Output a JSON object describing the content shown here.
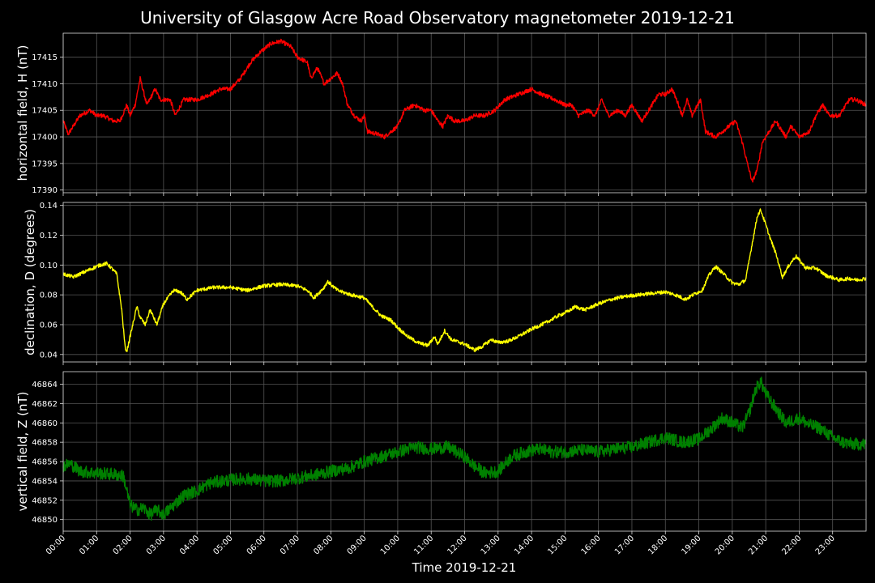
{
  "chart_data": {
    "title": "University of Glasgow Acre Road Observatory magnetometer 2019-12-21",
    "xlabel": "Time 2019-12-21",
    "x_ticks": [
      "00:00",
      "01:00",
      "02:00",
      "03:00",
      "04:00",
      "05:00",
      "06:00",
      "07:00",
      "08:00",
      "09:00",
      "10:00",
      "11:00",
      "12:00",
      "13:00",
      "14:00",
      "15:00",
      "16:00",
      "17:00",
      "18:00",
      "19:00",
      "20:00",
      "21:00",
      "22:00",
      "23:00"
    ],
    "xlim_hours": [
      0,
      24
    ],
    "grid": true,
    "panels": [
      {
        "type": "line",
        "ylabel": "horizontal field, H (nT)",
        "color": "#ff0000",
        "ylim": [
          17389.5,
          17419.5
        ],
        "yticks": [
          17390,
          17395,
          17400,
          17405,
          17410,
          17415
        ],
        "noise": 0.4,
        "points": [
          [
            0,
            17403
          ],
          [
            0.15,
            17400.5
          ],
          [
            0.5,
            17404
          ],
          [
            0.8,
            17405
          ],
          [
            1,
            17404
          ],
          [
            1.2,
            17404
          ],
          [
            1.5,
            17403
          ],
          [
            1.7,
            17403
          ],
          [
            1.9,
            17406
          ],
          [
            2.0,
            17404
          ],
          [
            2.15,
            17406
          ],
          [
            2.3,
            17411
          ],
          [
            2.5,
            17406
          ],
          [
            2.75,
            17409
          ],
          [
            2.9,
            17407
          ],
          [
            3.2,
            17407
          ],
          [
            3.35,
            17404
          ],
          [
            3.6,
            17407
          ],
          [
            4,
            17407
          ],
          [
            4.4,
            17408
          ],
          [
            4.7,
            17409
          ],
          [
            5,
            17409
          ],
          [
            5.3,
            17411
          ],
          [
            5.6,
            17414
          ],
          [
            5.9,
            17416
          ],
          [
            6.2,
            17417.5
          ],
          [
            6.5,
            17418
          ],
          [
            6.8,
            17417
          ],
          [
            7.0,
            17415
          ],
          [
            7.3,
            17414
          ],
          [
            7.4,
            17411
          ],
          [
            7.6,
            17413
          ],
          [
            7.8,
            17410
          ],
          [
            8.0,
            17411
          ],
          [
            8.2,
            17412
          ],
          [
            8.35,
            17410
          ],
          [
            8.5,
            17406
          ],
          [
            8.7,
            17404
          ],
          [
            8.9,
            17403
          ],
          [
            9.0,
            17404
          ],
          [
            9.1,
            17401
          ],
          [
            9.4,
            17400.5
          ],
          [
            9.6,
            17400
          ],
          [
            9.8,
            17401
          ],
          [
            10.0,
            17402
          ],
          [
            10.2,
            17405
          ],
          [
            10.5,
            17406
          ],
          [
            10.8,
            17405
          ],
          [
            11.0,
            17405
          ],
          [
            11.2,
            17403
          ],
          [
            11.35,
            17402
          ],
          [
            11.5,
            17404
          ],
          [
            11.7,
            17403
          ],
          [
            12.0,
            17403
          ],
          [
            12.3,
            17404
          ],
          [
            12.6,
            17404
          ],
          [
            12.9,
            17405
          ],
          [
            13.2,
            17407
          ],
          [
            13.6,
            17408
          ],
          [
            14.0,
            17409
          ],
          [
            14.3,
            17408
          ],
          [
            14.7,
            17407
          ],
          [
            15.0,
            17406
          ],
          [
            15.2,
            17406
          ],
          [
            15.4,
            17404
          ],
          [
            15.7,
            17405
          ],
          [
            15.9,
            17404
          ],
          [
            16.1,
            17407
          ],
          [
            16.3,
            17404
          ],
          [
            16.6,
            17405
          ],
          [
            16.8,
            17404
          ],
          [
            17.0,
            17406
          ],
          [
            17.3,
            17403
          ],
          [
            17.6,
            17406
          ],
          [
            17.8,
            17408
          ],
          [
            18.0,
            17408
          ],
          [
            18.2,
            17409
          ],
          [
            18.4,
            17406
          ],
          [
            18.5,
            17404
          ],
          [
            18.65,
            17407
          ],
          [
            18.8,
            17404
          ],
          [
            19.05,
            17407
          ],
          [
            19.2,
            17401
          ],
          [
            19.5,
            17400
          ],
          [
            19.7,
            17401
          ],
          [
            19.9,
            17402
          ],
          [
            20.1,
            17403
          ],
          [
            20.2,
            17401
          ],
          [
            20.3,
            17399
          ],
          [
            20.45,
            17395
          ],
          [
            20.6,
            17391.5
          ],
          [
            20.75,
            17394
          ],
          [
            20.9,
            17399
          ],
          [
            21.1,
            17401
          ],
          [
            21.3,
            17403
          ],
          [
            21.5,
            17401
          ],
          [
            21.6,
            17400
          ],
          [
            21.75,
            17402
          ],
          [
            22.0,
            17400
          ],
          [
            22.3,
            17401
          ],
          [
            22.5,
            17404
          ],
          [
            22.7,
            17406
          ],
          [
            22.9,
            17404
          ],
          [
            23.2,
            17404
          ],
          [
            23.5,
            17407
          ],
          [
            23.7,
            17407
          ],
          [
            24,
            17406
          ]
        ]
      },
      {
        "type": "line",
        "ylabel": "declination, D (degrees)",
        "color": "#ffff00",
        "ylim": [
          0.035,
          0.142
        ],
        "yticks": [
          0.04,
          0.06,
          0.08,
          0.1,
          0.12,
          0.14
        ],
        "ytick_labels": [
          "0.04",
          "0.06",
          "0.08",
          "0.10",
          "0.12",
          "0.14"
        ],
        "noise": 0.0012,
        "points": [
          [
            0,
            0.094
          ],
          [
            0.3,
            0.092
          ],
          [
            0.6,
            0.095
          ],
          [
            0.9,
            0.098
          ],
          [
            1.1,
            0.1
          ],
          [
            1.3,
            0.101
          ],
          [
            1.4,
            0.099
          ],
          [
            1.6,
            0.094
          ],
          [
            1.75,
            0.07
          ],
          [
            1.85,
            0.045
          ],
          [
            1.9,
            0.042
          ],
          [
            2.0,
            0.052
          ],
          [
            2.2,
            0.072
          ],
          [
            2.3,
            0.065
          ],
          [
            2.45,
            0.06
          ],
          [
            2.6,
            0.07
          ],
          [
            2.8,
            0.06
          ],
          [
            3.0,
            0.074
          ],
          [
            3.3,
            0.083
          ],
          [
            3.5,
            0.082
          ],
          [
            3.7,
            0.077
          ],
          [
            4.0,
            0.083
          ],
          [
            4.5,
            0.085
          ],
          [
            5.0,
            0.085
          ],
          [
            5.5,
            0.083
          ],
          [
            6.0,
            0.086
          ],
          [
            6.5,
            0.087
          ],
          [
            7.0,
            0.086
          ],
          [
            7.3,
            0.083
          ],
          [
            7.5,
            0.078
          ],
          [
            7.8,
            0.085
          ],
          [
            7.9,
            0.089
          ],
          [
            8.2,
            0.083
          ],
          [
            8.6,
            0.08
          ],
          [
            9.0,
            0.078
          ],
          [
            9.2,
            0.073
          ],
          [
            9.5,
            0.066
          ],
          [
            9.8,
            0.063
          ],
          [
            10.0,
            0.058
          ],
          [
            10.3,
            0.052
          ],
          [
            10.6,
            0.048
          ],
          [
            10.9,
            0.046
          ],
          [
            11.1,
            0.052
          ],
          [
            11.2,
            0.047
          ],
          [
            11.4,
            0.056
          ],
          [
            11.6,
            0.05
          ],
          [
            12.0,
            0.047
          ],
          [
            12.3,
            0.043
          ],
          [
            12.5,
            0.045
          ],
          [
            12.8,
            0.05
          ],
          [
            13.0,
            0.048
          ],
          [
            13.3,
            0.049
          ],
          [
            13.6,
            0.052
          ],
          [
            14.0,
            0.057
          ],
          [
            14.4,
            0.061
          ],
          [
            14.8,
            0.066
          ],
          [
            15.1,
            0.069
          ],
          [
            15.3,
            0.072
          ],
          [
            15.6,
            0.07
          ],
          [
            16.0,
            0.074
          ],
          [
            16.4,
            0.077
          ],
          [
            16.8,
            0.079
          ],
          [
            17.2,
            0.08
          ],
          [
            17.6,
            0.081
          ],
          [
            18.0,
            0.082
          ],
          [
            18.3,
            0.08
          ],
          [
            18.6,
            0.077
          ],
          [
            18.9,
            0.081
          ],
          [
            19.1,
            0.083
          ],
          [
            19.3,
            0.093
          ],
          [
            19.5,
            0.099
          ],
          [
            19.7,
            0.095
          ],
          [
            20.0,
            0.088
          ],
          [
            20.2,
            0.087
          ],
          [
            20.4,
            0.09
          ],
          [
            20.6,
            0.115
          ],
          [
            20.75,
            0.133
          ],
          [
            20.85,
            0.137
          ],
          [
            21.0,
            0.127
          ],
          [
            21.15,
            0.117
          ],
          [
            21.3,
            0.108
          ],
          [
            21.5,
            0.092
          ],
          [
            21.7,
            0.1
          ],
          [
            21.9,
            0.106
          ],
          [
            22.2,
            0.098
          ],
          [
            22.5,
            0.098
          ],
          [
            22.8,
            0.093
          ],
          [
            23.2,
            0.09
          ],
          [
            23.5,
            0.091
          ],
          [
            23.7,
            0.09
          ],
          [
            24,
            0.091
          ]
        ]
      },
      {
        "type": "line",
        "ylabel": "vertical field, Z (nT)",
        "color": "#008000",
        "ylim": [
          46848.8,
          46865.3
        ],
        "yticks": [
          46850,
          46852,
          46854,
          46856,
          46858,
          46860,
          46862,
          46864
        ],
        "noise": 0.65,
        "points": [
          [
            0,
            46855.5
          ],
          [
            0.2,
            46855.8
          ],
          [
            0.5,
            46855.0
          ],
          [
            1.0,
            46854.8
          ],
          [
            1.5,
            46854.7
          ],
          [
            1.8,
            46854.5
          ],
          [
            2.0,
            46851.5
          ],
          [
            2.2,
            46851.0
          ],
          [
            2.4,
            46851.2
          ],
          [
            2.6,
            46850.5
          ],
          [
            2.8,
            46851.0
          ],
          [
            3.0,
            46850.5
          ],
          [
            3.3,
            46851.5
          ],
          [
            3.6,
            46852.5
          ],
          [
            4.0,
            46853.0
          ],
          [
            4.4,
            46853.8
          ],
          [
            4.8,
            46854.0
          ],
          [
            5.2,
            46854.2
          ],
          [
            5.6,
            46854.2
          ],
          [
            6.0,
            46854.0
          ],
          [
            6.5,
            46854.0
          ],
          [
            7.0,
            46854.3
          ],
          [
            7.5,
            46854.6
          ],
          [
            8.0,
            46855.0
          ],
          [
            8.5,
            46855.3
          ],
          [
            9.0,
            46856.0
          ],
          [
            9.5,
            46856.5
          ],
          [
            10.0,
            46857.0
          ],
          [
            10.5,
            46857.5
          ],
          [
            11.0,
            46857.3
          ],
          [
            11.5,
            46857.5
          ],
          [
            12.0,
            46856.5
          ],
          [
            12.3,
            46855.5
          ],
          [
            12.6,
            46854.8
          ],
          [
            13.0,
            46855.0
          ],
          [
            13.4,
            46856.5
          ],
          [
            13.8,
            46857.0
          ],
          [
            14.2,
            46857.3
          ],
          [
            14.6,
            46857.0
          ],
          [
            15.0,
            46857.0
          ],
          [
            15.5,
            46857.2
          ],
          [
            16.0,
            46857.0
          ],
          [
            16.5,
            46857.3
          ],
          [
            17.0,
            46857.5
          ],
          [
            17.5,
            46858.0
          ],
          [
            18.0,
            46858.5
          ],
          [
            18.5,
            46858.0
          ],
          [
            19.0,
            46858.3
          ],
          [
            19.4,
            46859.5
          ],
          [
            19.7,
            46860.5
          ],
          [
            20.0,
            46860.0
          ],
          [
            20.3,
            46859.5
          ],
          [
            20.5,
            46861.0
          ],
          [
            20.7,
            46863.5
          ],
          [
            20.85,
            46864.3
          ],
          [
            21.0,
            46863.0
          ],
          [
            21.3,
            46861.5
          ],
          [
            21.6,
            46860.0
          ],
          [
            22.0,
            46860.5
          ],
          [
            22.3,
            46859.8
          ],
          [
            22.6,
            46859.5
          ],
          [
            23.0,
            46858.5
          ],
          [
            23.3,
            46858.0
          ],
          [
            23.6,
            46857.8
          ],
          [
            24,
            46857.8
          ]
        ]
      }
    ]
  }
}
